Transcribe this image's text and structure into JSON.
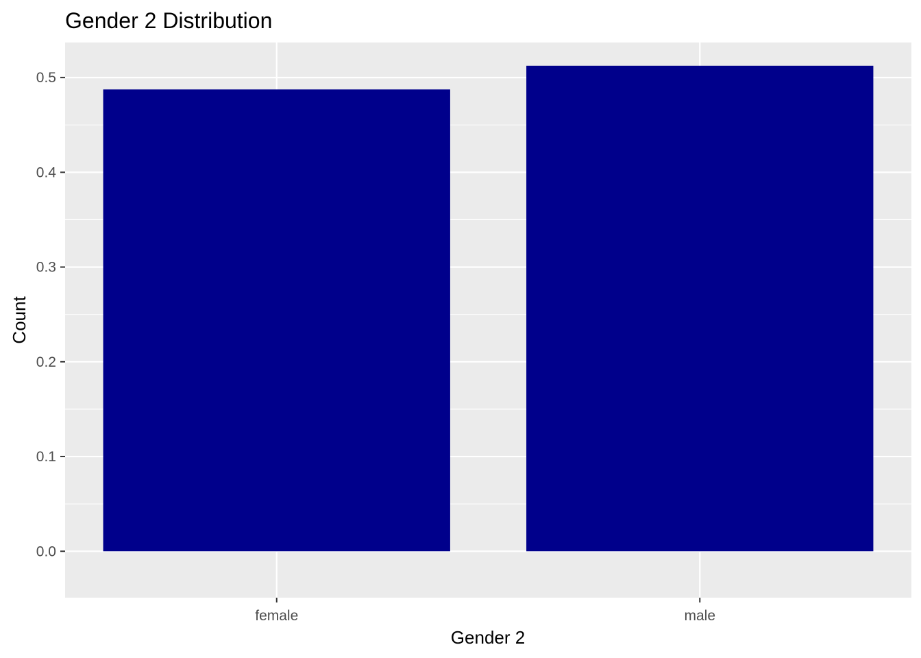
{
  "chart_data": {
    "type": "bar",
    "title": "Gender 2 Distribution",
    "xlabel": "Gender 2",
    "ylabel": "Count",
    "categories": [
      "female",
      "male"
    ],
    "values": [
      0.4875,
      0.5125
    ],
    "ylim": [
      -0.049,
      0.537
    ],
    "yticks": [
      0.0,
      0.1,
      0.2,
      0.3,
      0.4,
      0.5
    ],
    "ytick_labels": [
      "0.0",
      "0.1",
      "0.2",
      "0.3",
      "0.4",
      "0.5"
    ],
    "grid": true,
    "bar_color": "#00008B",
    "panel_color": "#EBEBEB",
    "grid_color": "#FFFFFF",
    "tick_label_color": "#4D4D4D"
  }
}
